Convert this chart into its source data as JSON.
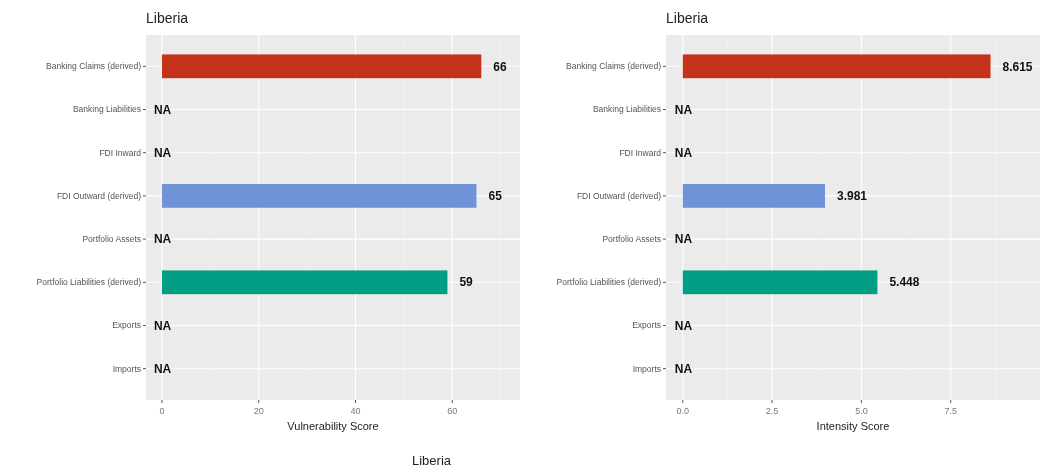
{
  "chart_data": [
    {
      "type": "bar",
      "orientation": "horizontal",
      "title": "Liberia",
      "xlabel": "Vulnerability Score",
      "categories": [
        "Banking Claims (derived)",
        "Banking Liabilities",
        "FDI Inward",
        "FDI Outward (derived)",
        "Portfolio Assets",
        "Portfolio Liabilities (derived)",
        "Exports",
        "Imports"
      ],
      "values": [
        66,
        null,
        null,
        65,
        null,
        59,
        null,
        null
      ],
      "colors": [
        "#c4321a",
        null,
        null,
        "#6f93d6",
        null,
        "#009e84",
        null,
        null
      ],
      "value_labels": [
        "66",
        "NA",
        "NA",
        "65",
        "NA",
        "59",
        "NA",
        "NA"
      ],
      "xlim": [
        -3.3,
        74
      ],
      "xticks": [
        0,
        20,
        40,
        60
      ],
      "grid": true,
      "annotations": [
        "Liberia"
      ]
    },
    {
      "type": "bar",
      "orientation": "horizontal",
      "title": "Liberia",
      "xlabel": "Intensity Score",
      "categories": [
        "Banking Claims (derived)",
        "Banking Liabilities",
        "FDI Inward",
        "FDI Outward (derived)",
        "Portfolio Assets",
        "Portfolio Liabilities (derived)",
        "Exports",
        "Imports"
      ],
      "values": [
        8.615,
        null,
        null,
        3.981,
        null,
        5.448,
        null,
        null
      ],
      "colors": [
        "#c4321a",
        null,
        null,
        "#6f93d6",
        null,
        "#009e84",
        null,
        null
      ],
      "value_labels": [
        "8.615",
        "NA",
        "NA",
        "3.981",
        "NA",
        "5.448",
        "NA",
        "NA"
      ],
      "xlim": [
        -0.47,
        10
      ],
      "xticks": [
        {
          "value": 0,
          "label": "0.0"
        },
        {
          "value": 2.5,
          "label": "2.5"
        },
        {
          "value": 5,
          "label": "5.0"
        },
        {
          "value": 7.5,
          "label": "7.5"
        }
      ],
      "grid": true
    }
  ]
}
